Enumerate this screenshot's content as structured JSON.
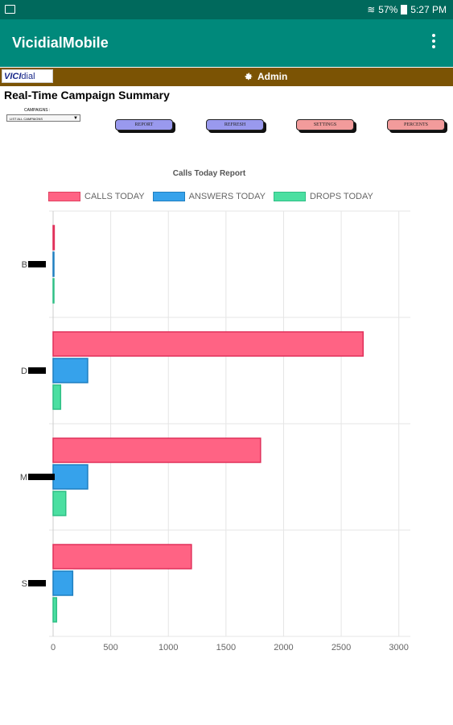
{
  "status": {
    "battery": "57%",
    "time": "5:27 PM"
  },
  "app": {
    "title": "VicidialMobile"
  },
  "header": {
    "logo_a": "VICI",
    "logo_b": "dial",
    "admin": "Admin"
  },
  "page": {
    "title": "Real-Time Campaign Summary"
  },
  "campaigns": {
    "label": "CAMPAIGNS :",
    "selected": "LIST ALL CAMPAIGNS"
  },
  "buttons": {
    "report": "REPORT",
    "refresh": "REFRESH",
    "settings": "SETTINGS",
    "percents": "PERCENTS"
  },
  "colors": {
    "calls": "#ff6384",
    "answers": "#36a2eb",
    "drops": "#4bdfa1",
    "report_btn": "#9999ee",
    "settings_btn": "#f29b9b"
  },
  "chart_data": {
    "type": "bar",
    "orientation": "horizontal",
    "title": "Calls Today Report",
    "categories": [
      "B",
      "D",
      "M",
      "S"
    ],
    "series": [
      {
        "name": "CALLS TODAY",
        "values": [
          10,
          2690,
          1800,
          1200
        ]
      },
      {
        "name": "ANSWERS TODAY",
        "values": [
          5,
          300,
          300,
          170
        ]
      },
      {
        "name": "DROPS TODAY",
        "values": [
          3,
          65,
          110,
          30
        ]
      }
    ],
    "xlim": [
      0,
      3100
    ],
    "xticks": [
      0,
      500,
      1000,
      1500,
      2000,
      2500,
      3000
    ],
    "grid": true,
    "legend": "top"
  }
}
